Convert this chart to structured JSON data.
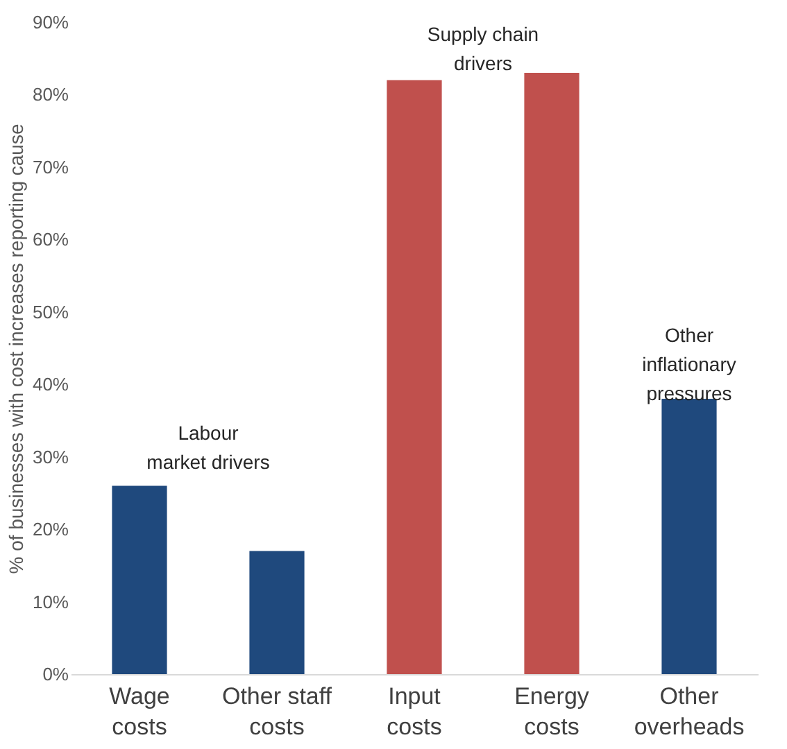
{
  "chart_data": {
    "type": "bar",
    "ylabel": "% of businesses with cost increases reporting cause",
    "categories": [
      "Wage costs",
      "Other staff costs",
      "Input costs",
      "Energy costs",
      "Other overheads"
    ],
    "values": [
      26,
      17,
      82,
      83,
      38
    ],
    "colors": [
      "#1f497d",
      "#1f497d",
      "#c0504d",
      "#c0504d",
      "#1f497d"
    ],
    "ylim": [
      0,
      90
    ],
    "yticks": [
      {
        "value": 0,
        "label": "0%"
      },
      {
        "value": 10,
        "label": "10%"
      },
      {
        "value": 20,
        "label": "20%"
      },
      {
        "value": 30,
        "label": "30%"
      },
      {
        "value": 40,
        "label": "40%"
      },
      {
        "value": 50,
        "label": "50%"
      },
      {
        "value": 60,
        "label": "60%"
      },
      {
        "value": 70,
        "label": "70%"
      },
      {
        "value": 80,
        "label": "80%"
      },
      {
        "value": 90,
        "label": "90%"
      }
    ],
    "annotations": [
      "Labour\nmarket drivers",
      "Supply chain\ndrivers",
      "Other\ninflationary\npressures"
    ]
  }
}
